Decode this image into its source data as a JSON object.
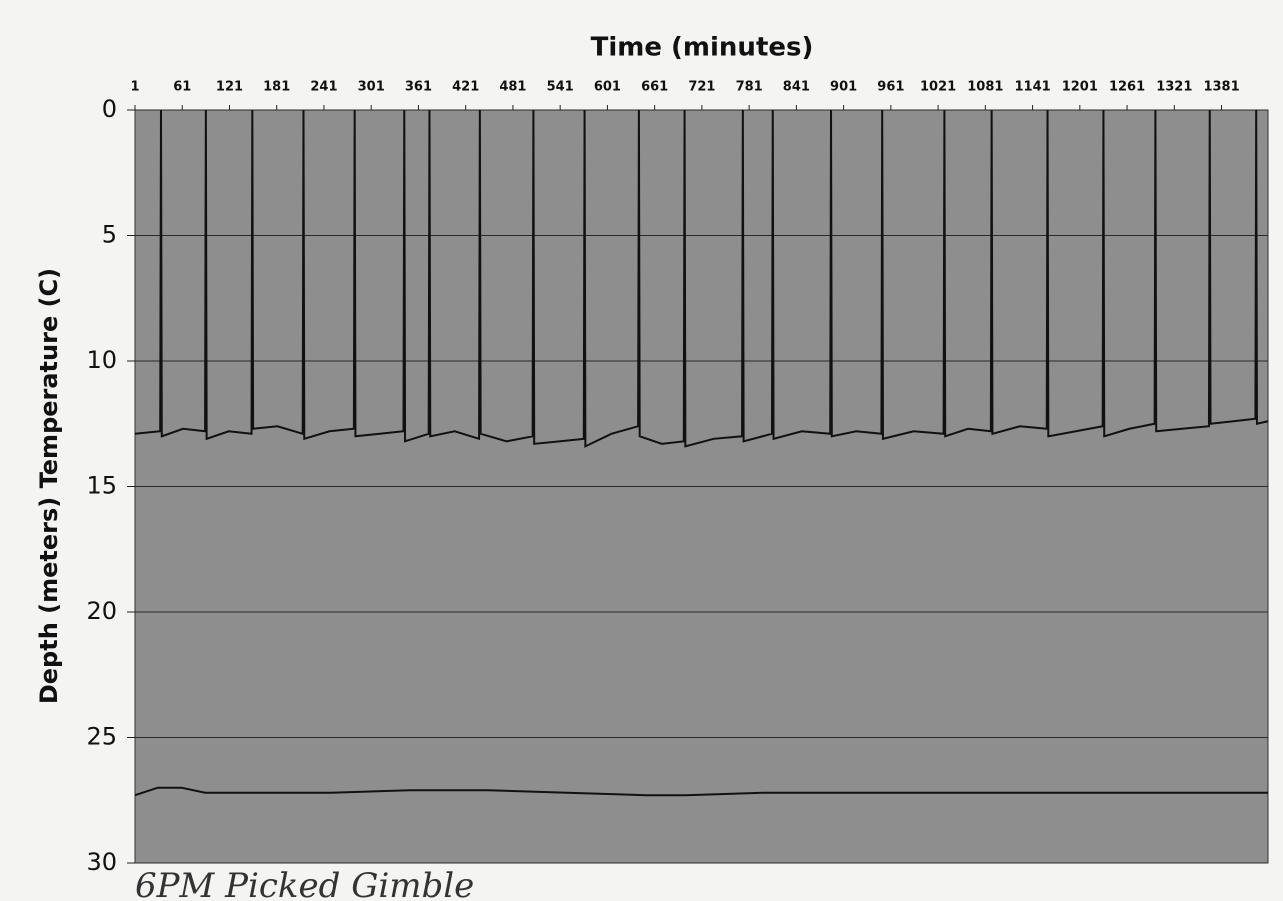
{
  "chart_data": {
    "type": "line",
    "title": "Time (minutes)",
    "y_label": "Depth (meters) Temperature (C)",
    "annotation": "6PM Picked Gimble",
    "xlim": [
      1,
      1440
    ],
    "xticks": [
      1,
      61,
      121,
      181,
      241,
      301,
      361,
      421,
      481,
      541,
      601,
      661,
      721,
      781,
      841,
      901,
      961,
      1021,
      1081,
      1141,
      1201,
      1261,
      1321,
      1381
    ],
    "ylim": [
      0,
      30
    ],
    "yticks": [
      0,
      5,
      10,
      15,
      20,
      25,
      30
    ],
    "y_inverted": true,
    "grid": true,
    "series": [
      {
        "color": "#111111",
        "x": [
          1,
          33,
          34,
          35,
          62,
          90,
          91,
          92,
          120,
          149,
          150,
          151,
          182,
          214,
          215,
          216,
          248,
          279,
          280,
          281,
          312,
          342,
          343,
          344,
          374,
          375,
          376,
          407,
          438,
          439,
          440,
          473,
          506,
          507,
          508,
          540,
          571,
          572,
          573,
          606,
          640,
          641,
          642,
          670,
          698,
          699,
          700,
          736,
          772,
          773,
          774,
          810,
          811,
          812,
          848,
          884,
          885,
          886,
          917,
          949,
          950,
          951,
          990,
          1028,
          1029,
          1030,
          1059,
          1088,
          1089,
          1090,
          1125,
          1159,
          1160,
          1161,
          1196,
          1230,
          1231,
          1232,
          1264,
          1296,
          1297,
          1298,
          1331,
          1365,
          1366,
          1367,
          1396,
          1424,
          1425,
          1426,
          1440
        ],
        "values": [
          12.9,
          12.8,
          0,
          13.0,
          12.7,
          12.8,
          0,
          13.1,
          12.8,
          12.9,
          0,
          12.7,
          12.6,
          12.9,
          0,
          13.1,
          12.8,
          12.7,
          0,
          13.0,
          12.9,
          12.8,
          0,
          13.2,
          12.9,
          0,
          13.0,
          12.8,
          13.1,
          0,
          12.9,
          13.2,
          13.0,
          0,
          13.3,
          13.2,
          13.1,
          0,
          13.4,
          12.9,
          12.6,
          0,
          13.0,
          13.3,
          13.2,
          0,
          13.4,
          13.1,
          13.0,
          0,
          13.2,
          12.9,
          0,
          13.1,
          12.8,
          12.9,
          0,
          13.0,
          12.8,
          12.9,
          0,
          13.1,
          12.8,
          12.9,
          0,
          13.0,
          12.7,
          12.8,
          0,
          12.9,
          12.6,
          12.7,
          0,
          13.0,
          12.8,
          12.6,
          0,
          13.0,
          12.7,
          12.5,
          0,
          12.8,
          12.7,
          12.6,
          0,
          12.5,
          12.4,
          12.3,
          0,
          12.5,
          12.4
        ]
      },
      {
        "color": "#111111",
        "x": [
          1,
          30,
          60,
          90,
          150,
          250,
          350,
          450,
          550,
          650,
          700,
          800,
          900,
          1000,
          1100,
          1200,
          1300,
          1440
        ],
        "values": [
          27.3,
          27.0,
          27.0,
          27.2,
          27.2,
          27.2,
          27.1,
          27.1,
          27.2,
          27.3,
          27.3,
          27.2,
          27.2,
          27.2,
          27.2,
          27.2,
          27.2,
          27.2
        ]
      }
    ]
  }
}
